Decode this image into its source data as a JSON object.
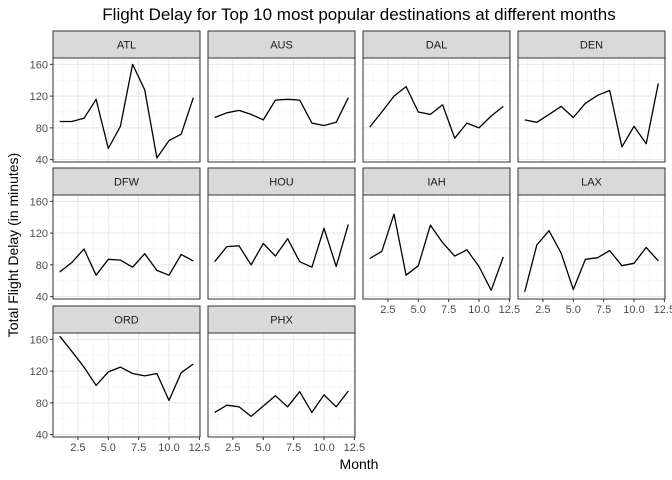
{
  "chart_data": {
    "type": "line",
    "title": "Flight Delay for Top 10 most popular destinations at different months",
    "xlabel": "Month",
    "ylabel": "Total Flight Delay (in minutes)",
    "xlim": [
      0.45,
      12.55
    ],
    "ylim": [
      37,
      168
    ],
    "x_ticks": [
      2.5,
      5.0,
      7.5,
      10.0,
      12.5
    ],
    "y_ticks": [
      40,
      80,
      120,
      160
    ],
    "x_tick_labels": [
      "2.5",
      "5.0",
      "7.5",
      "10.0",
      "12.5"
    ],
    "y_tick_labels": [
      "40",
      "80",
      "120",
      "160"
    ],
    "grid": true,
    "line_color": "#000000",
    "months": [
      1,
      2,
      3,
      4,
      5,
      6,
      7,
      8,
      9,
      10,
      11,
      12
    ],
    "panels": [
      {
        "name": "ATL",
        "values": [
          88,
          88,
          92,
          116,
          54,
          82,
          160,
          128,
          42,
          64,
          72,
          118
        ]
      },
      {
        "name": "AUS",
        "values": [
          93,
          99,
          102,
          97,
          90,
          115,
          116,
          115,
          86,
          83,
          87,
          118
        ]
      },
      {
        "name": "DAL",
        "values": [
          81,
          100,
          120,
          132,
          100,
          97,
          109,
          67,
          86,
          80,
          95,
          107
        ]
      },
      {
        "name": "DEN",
        "values": [
          90,
          87,
          97,
          107,
          93,
          111,
          121,
          127,
          56,
          82,
          60,
          136
        ]
      },
      {
        "name": "DFW",
        "values": [
          71,
          83,
          100,
          67,
          87,
          86,
          77,
          94,
          73,
          67,
          93,
          85
        ]
      },
      {
        "name": "HOU",
        "values": [
          84,
          103,
          104,
          80,
          107,
          91,
          113,
          84,
          77,
          126,
          78,
          131
        ]
      },
      {
        "name": "IAH",
        "values": [
          88,
          97,
          144,
          67,
          79,
          130,
          108,
          91,
          99,
          78,
          48,
          90
        ]
      },
      {
        "name": "LAX",
        "values": [
          46,
          105,
          123,
          95,
          49,
          87,
          89,
          98,
          79,
          82,
          102,
          85
        ]
      },
      {
        "name": "ORD",
        "values": [
          164,
          145,
          125,
          102,
          119,
          125,
          117,
          114,
          117,
          83,
          118,
          129
        ]
      },
      {
        "name": "PHX",
        "values": [
          68,
          77,
          75,
          63,
          76,
          89,
          75,
          94,
          68,
          90,
          75,
          95
        ]
      }
    ]
  }
}
